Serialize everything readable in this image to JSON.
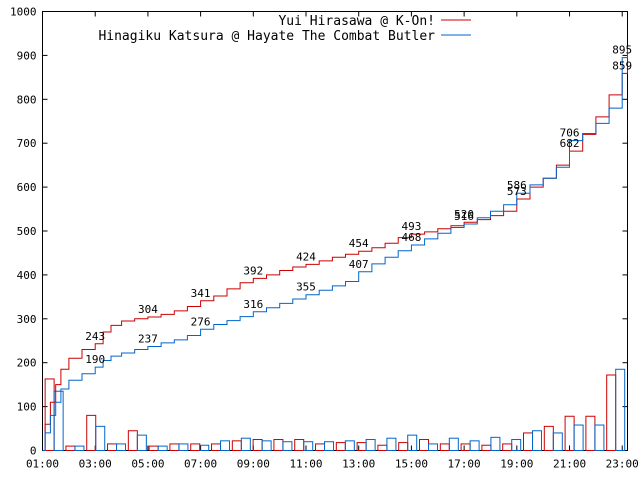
{
  "chart_data": {
    "type": "line",
    "title": "",
    "xlabel": "",
    "ylabel": "",
    "xlim": [
      1,
      23.2
    ],
    "ylim": [
      0,
      1000
    ],
    "y_ticks": [
      0,
      100,
      200,
      300,
      400,
      500,
      600,
      700,
      800,
      900,
      1000
    ],
    "x_ticks": [
      {
        "value": 1,
        "label": "01:00"
      },
      {
        "value": 3,
        "label": "03:00"
      },
      {
        "value": 5,
        "label": "05:00"
      },
      {
        "value": 7,
        "label": "07:00"
      },
      {
        "value": 9,
        "label": "09:00"
      },
      {
        "value": 11,
        "label": "11:00"
      },
      {
        "value": 13,
        "label": "13:00"
      },
      {
        "value": 15,
        "label": "15:00"
      },
      {
        "value": 17,
        "label": "17:00"
      },
      {
        "value": 19,
        "label": "19:00"
      },
      {
        "value": 21,
        "label": "21:00"
      },
      {
        "value": 23,
        "label": "23:00"
      }
    ],
    "grid": false,
    "legend_position": "top-right",
    "series": [
      {
        "name": "Yui Hirasawa @ K-On!",
        "color": "#cc0000",
        "cumulative": [
          [
            1.0,
            0
          ],
          [
            1.1,
            60
          ],
          [
            1.3,
            110
          ],
          [
            1.5,
            150
          ],
          [
            1.7,
            185
          ],
          [
            2.0,
            210
          ],
          [
            2.5,
            230
          ],
          [
            3.0,
            243
          ],
          [
            3.3,
            270
          ],
          [
            3.6,
            285
          ],
          [
            4.0,
            295
          ],
          [
            4.5,
            300
          ],
          [
            5.0,
            304
          ],
          [
            5.5,
            310
          ],
          [
            6.0,
            318
          ],
          [
            6.5,
            328
          ],
          [
            7.0,
            341
          ],
          [
            7.5,
            352
          ],
          [
            8.0,
            368
          ],
          [
            8.5,
            382
          ],
          [
            9.0,
            392
          ],
          [
            9.5,
            400
          ],
          [
            10.0,
            410
          ],
          [
            10.5,
            418
          ],
          [
            11.0,
            424
          ],
          [
            11.5,
            432
          ],
          [
            12.0,
            440
          ],
          [
            12.5,
            447
          ],
          [
            13.0,
            454
          ],
          [
            13.5,
            462
          ],
          [
            14.0,
            472
          ],
          [
            14.5,
            485
          ],
          [
            15.0,
            493
          ],
          [
            15.5,
            498
          ],
          [
            16.0,
            505
          ],
          [
            16.5,
            512
          ],
          [
            17.0,
            520
          ],
          [
            17.5,
            526
          ],
          [
            18.0,
            535
          ],
          [
            18.5,
            545
          ],
          [
            19.0,
            573
          ],
          [
            19.5,
            600
          ],
          [
            20.0,
            620
          ],
          [
            20.5,
            650
          ],
          [
            21.0,
            682
          ],
          [
            21.5,
            720
          ],
          [
            22.0,
            760
          ],
          [
            22.5,
            810
          ],
          [
            23.0,
            859
          ],
          [
            23.2,
            905
          ]
        ],
        "bars": [
          163,
          10,
          80,
          15,
          45,
          10,
          15,
          15,
          15,
          22,
          25,
          25,
          25,
          15,
          18,
          18,
          12,
          18,
          25,
          15,
          15,
          12,
          15,
          40,
          55,
          78,
          78,
          172
        ]
      },
      {
        "name": "Hinagiku Katsura @ Hayate The Combat Butler",
        "color": "#0066cc",
        "cumulative": [
          [
            1.0,
            0
          ],
          [
            1.1,
            40
          ],
          [
            1.3,
            80
          ],
          [
            1.5,
            110
          ],
          [
            1.7,
            140
          ],
          [
            2.0,
            160
          ],
          [
            2.5,
            175
          ],
          [
            3.0,
            190
          ],
          [
            3.3,
            205
          ],
          [
            3.6,
            215
          ],
          [
            4.0,
            222
          ],
          [
            4.5,
            230
          ],
          [
            5.0,
            237
          ],
          [
            5.5,
            245
          ],
          [
            6.0,
            252
          ],
          [
            6.5,
            262
          ],
          [
            7.0,
            276
          ],
          [
            7.5,
            287
          ],
          [
            8.0,
            296
          ],
          [
            8.5,
            305
          ],
          [
            9.0,
            316
          ],
          [
            9.5,
            325
          ],
          [
            10.0,
            335
          ],
          [
            10.5,
            345
          ],
          [
            11.0,
            355
          ],
          [
            11.5,
            365
          ],
          [
            12.0,
            375
          ],
          [
            12.5,
            385
          ],
          [
            13.0,
            407
          ],
          [
            13.5,
            425
          ],
          [
            14.0,
            440
          ],
          [
            14.5,
            455
          ],
          [
            15.0,
            468
          ],
          [
            15.5,
            482
          ],
          [
            16.0,
            495
          ],
          [
            16.5,
            508
          ],
          [
            17.0,
            516
          ],
          [
            17.5,
            530
          ],
          [
            18.0,
            545
          ],
          [
            18.5,
            560
          ],
          [
            19.0,
            586
          ],
          [
            19.5,
            605
          ],
          [
            20.0,
            620
          ],
          [
            20.5,
            645
          ],
          [
            21.0,
            706
          ],
          [
            21.5,
            722
          ],
          [
            22.0,
            745
          ],
          [
            22.5,
            780
          ],
          [
            23.0,
            895
          ],
          [
            23.2,
            920
          ]
        ],
        "bars": [
          135,
          10,
          55,
          15,
          35,
          10,
          15,
          12,
          22,
          28,
          22,
          20,
          20,
          20,
          22,
          25,
          28,
          35,
          15,
          28,
          22,
          30,
          25,
          45,
          40,
          58,
          58,
          185
        ]
      }
    ],
    "data_labels": [
      {
        "x": 3.0,
        "y": 243,
        "text": "243"
      },
      {
        "x": 5.0,
        "y": 304,
        "text": "304"
      },
      {
        "x": 7.0,
        "y": 341,
        "text": "341"
      },
      {
        "x": 9.0,
        "y": 392,
        "text": "392"
      },
      {
        "x": 11.0,
        "y": 424,
        "text": "424"
      },
      {
        "x": 13.0,
        "y": 454,
        "text": "454"
      },
      {
        "x": 15.0,
        "y": 493,
        "text": "493"
      },
      {
        "x": 17.0,
        "y": 520,
        "text": "520"
      },
      {
        "x": 19.0,
        "y": 573,
        "text": "573"
      },
      {
        "x": 21.0,
        "y": 682,
        "text": "682"
      },
      {
        "x": 23.0,
        "y": 859,
        "text": "859"
      },
      {
        "x": 3.0,
        "y": 190,
        "text": "190"
      },
      {
        "x": 5.0,
        "y": 237,
        "text": "237"
      },
      {
        "x": 7.0,
        "y": 276,
        "text": "276"
      },
      {
        "x": 9.0,
        "y": 316,
        "text": "316"
      },
      {
        "x": 11.0,
        "y": 355,
        "text": "355"
      },
      {
        "x": 13.0,
        "y": 407,
        "text": "407"
      },
      {
        "x": 15.0,
        "y": 468,
        "text": "468"
      },
      {
        "x": 17.0,
        "y": 516,
        "text": "516"
      },
      {
        "x": 19.0,
        "y": 586,
        "text": "586"
      },
      {
        "x": 21.0,
        "y": 706,
        "text": "706"
      },
      {
        "x": 23.0,
        "y": 895,
        "text": "895"
      }
    ]
  }
}
